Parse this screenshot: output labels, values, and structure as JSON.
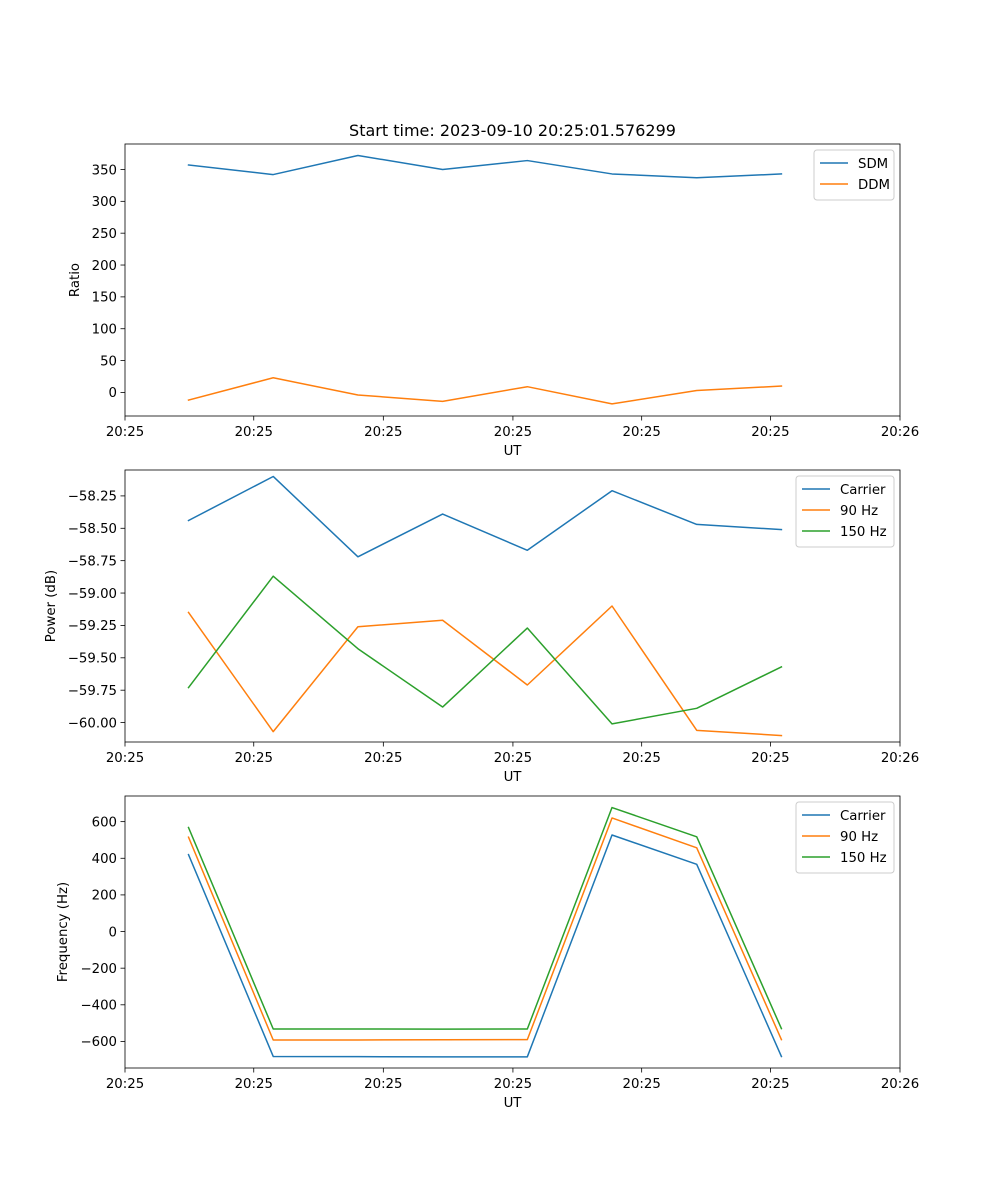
{
  "figure_title": "Start time: 2023-09-10 20:25:01.576299",
  "colors": {
    "blue": "#1f77b4",
    "orange": "#ff7f0e",
    "green": "#2ca02c"
  },
  "chart_data": [
    {
      "type": "line",
      "title": "Start time: 2023-09-10 20:25:01.576299",
      "xlabel": "UT",
      "ylabel": "Ratio",
      "x": [
        1,
        2,
        3,
        4,
        5,
        6,
        7,
        8
      ],
      "xlim": [
        0.25,
        9.4
      ],
      "xticks": [
        {
          "pos": 0.25,
          "label": "20:25"
        },
        {
          "pos": 1.77,
          "label": "20:25"
        },
        {
          "pos": 3.3,
          "label": "20:25"
        },
        {
          "pos": 4.83,
          "label": "20:25"
        },
        {
          "pos": 6.35,
          "label": "20:25"
        },
        {
          "pos": 7.87,
          "label": "20:25"
        },
        {
          "pos": 9.4,
          "label": "20:26"
        }
      ],
      "ylim": [
        -37,
        390
      ],
      "yticks": [
        0,
        50,
        100,
        150,
        200,
        250,
        300,
        350
      ],
      "yticklabels": [
        "0",
        "50",
        "100",
        "150",
        "200",
        "250",
        "300",
        "350"
      ],
      "legend_position": "upper right",
      "series": [
        {
          "name": "SDM",
          "color": "#1f77b4",
          "values": [
            357,
            342,
            372,
            350,
            364,
            343,
            337,
            343
          ]
        },
        {
          "name": "DDM",
          "color": "#ff7f0e",
          "values": [
            -12,
            23,
            -4,
            -14,
            9,
            -18,
            3,
            10
          ]
        }
      ]
    },
    {
      "type": "line",
      "title": "",
      "xlabel": "UT",
      "ylabel": "Power (dB)",
      "x": [
        1,
        2,
        3,
        4,
        5,
        6,
        7,
        8
      ],
      "xlim": [
        0.25,
        9.4
      ],
      "xticks": [
        {
          "pos": 0.25,
          "label": "20:25"
        },
        {
          "pos": 1.77,
          "label": "20:25"
        },
        {
          "pos": 3.3,
          "label": "20:25"
        },
        {
          "pos": 4.83,
          "label": "20:25"
        },
        {
          "pos": 6.35,
          "label": "20:25"
        },
        {
          "pos": 7.87,
          "label": "20:25"
        },
        {
          "pos": 9.4,
          "label": "20:26"
        }
      ],
      "ylim": [
        -60.15,
        -58.05
      ],
      "yticks": [
        -60.0,
        -59.75,
        -59.5,
        -59.25,
        -59.0,
        -58.75,
        -58.5,
        -58.25
      ],
      "yticklabels": [
        "−60.00",
        "−59.75",
        "−59.50",
        "−59.25",
        "−59.00",
        "−58.75",
        "−58.50",
        "−58.25"
      ],
      "legend_position": "upper right",
      "series": [
        {
          "name": "Carrier",
          "color": "#1f77b4",
          "values": [
            -58.44,
            -58.1,
            -58.72,
            -58.39,
            -58.67,
            -58.21,
            -58.47,
            -58.51
          ]
        },
        {
          "name": "90 Hz",
          "color": "#ff7f0e",
          "values": [
            -59.15,
            -60.07,
            -59.26,
            -59.21,
            -59.71,
            -59.1,
            -60.06,
            -60.1
          ]
        },
        {
          "name": "150 Hz",
          "color": "#2ca02c",
          "values": [
            -59.73,
            -58.87,
            -59.43,
            -59.88,
            -59.27,
            -60.01,
            -59.89,
            -59.57
          ]
        }
      ]
    },
    {
      "type": "line",
      "title": "",
      "xlabel": "UT",
      "ylabel": "Frequency (Hz)",
      "x": [
        1,
        2,
        3,
        4,
        5,
        6,
        7,
        8
      ],
      "xlim": [
        0.25,
        9.4
      ],
      "xticks": [
        {
          "pos": 0.25,
          "label": "20:25"
        },
        {
          "pos": 1.77,
          "label": "20:25"
        },
        {
          "pos": 3.3,
          "label": "20:25"
        },
        {
          "pos": 4.83,
          "label": "20:25"
        },
        {
          "pos": 6.35,
          "label": "20:25"
        },
        {
          "pos": 7.87,
          "label": "20:25"
        },
        {
          "pos": 9.4,
          "label": "20:26"
        }
      ],
      "ylim": [
        -745,
        740
      ],
      "yticks": [
        -600,
        -400,
        -200,
        0,
        200,
        400,
        600
      ],
      "yticklabels": [
        "−600",
        "−400",
        "−200",
        "0",
        "200",
        "400",
        "600"
      ],
      "legend_position": "upper right",
      "series": [
        {
          "name": "Carrier",
          "color": "#1f77b4",
          "values": [
            420,
            -682,
            -683,
            -684,
            -684,
            527,
            367,
            -682
          ]
        },
        {
          "name": "90 Hz",
          "color": "#ff7f0e",
          "values": [
            515,
            -592,
            -592,
            -591,
            -590,
            620,
            457,
            -590
          ]
        },
        {
          "name": "150 Hz",
          "color": "#2ca02c",
          "values": [
            568,
            -532,
            -532,
            -533,
            -532,
            677,
            517,
            -530
          ]
        }
      ]
    }
  ]
}
